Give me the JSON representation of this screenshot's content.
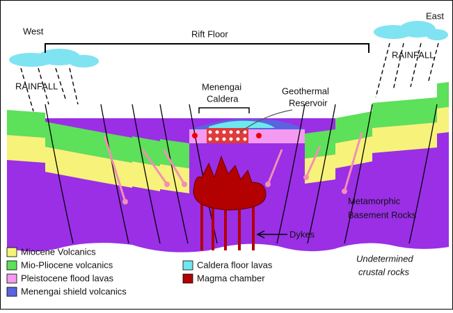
{
  "labels": {
    "west": "West",
    "east": "East",
    "rift_floor": "Rift Floor",
    "rainfall_west": "RAINFALL",
    "rainfall_east": "RAINFALL",
    "caldera": [
      "Menengai",
      "Caldera"
    ],
    "reservoir": [
      "Geothermal",
      "Reservoir"
    ],
    "basement": [
      "Metamorphic",
      "Basement Rocks"
    ],
    "dykes": "Dykes",
    "undetermined": [
      "Undetermined",
      "crustal rocks"
    ]
  },
  "legend": [
    {
      "label": "Miocene Volcanics",
      "color": "#f7f27a"
    },
    {
      "label": "Mio-Pliocene volcanics",
      "color": "#5de05a"
    },
    {
      "label": "Pleistocene flood lavas",
      "color": "#f49af0"
    },
    {
      "label": "Menengai shield volcanics",
      "color": "#5a64e0"
    },
    {
      "label": "Caldera floor lavas",
      "color": "#6ee8ee"
    },
    {
      "label": "Magma chamber",
      "color": "#b30000"
    }
  ]
}
